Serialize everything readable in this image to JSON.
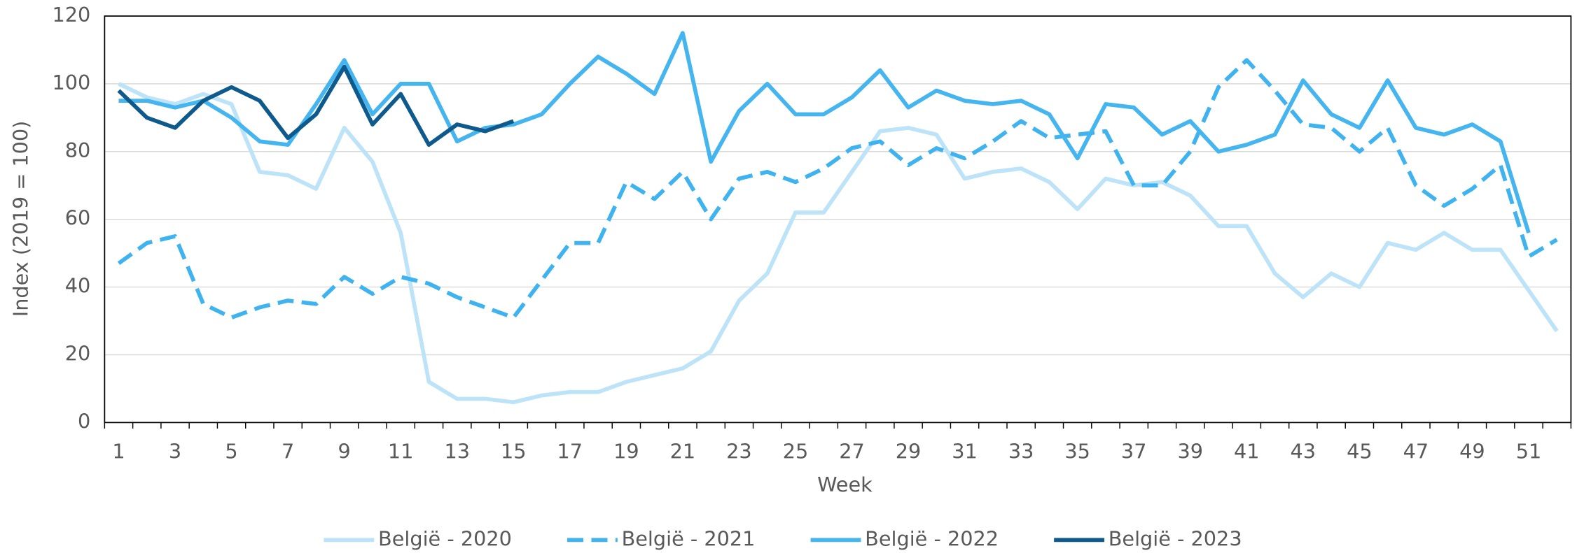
{
  "chart_data": {
    "type": "line",
    "xlabel": "Week",
    "ylabel": "Index (2019 = 100)",
    "categories": [
      "1",
      null,
      "3",
      null,
      "5",
      null,
      "7",
      null,
      "9",
      null,
      "11",
      null,
      "13",
      null,
      "15",
      null,
      "17",
      null,
      "19",
      null,
      "21",
      null,
      "23",
      null,
      "25",
      null,
      "27",
      null,
      "29",
      null,
      "31",
      null,
      "33",
      null,
      "35",
      null,
      "37",
      null,
      "39",
      null,
      "41",
      null,
      "43",
      null,
      "45",
      null,
      "47",
      null,
      "49",
      null,
      "51",
      null
    ],
    "ylim": [
      0,
      120
    ],
    "yticks": [
      0,
      20,
      40,
      60,
      80,
      100,
      120
    ],
    "grid": true,
    "legend": "bottom",
    "series": [
      {
        "name": "België - 2020",
        "color": "#bde3f8",
        "line_style": "solid",
        "values": [
          100,
          96,
          94,
          97,
          94,
          74,
          73,
          69,
          87,
          77,
          56,
          12,
          7,
          7,
          6,
          8,
          9,
          9,
          12,
          14,
          16,
          21,
          36,
          44,
          62,
          62,
          74,
          86,
          87,
          85,
          72,
          74,
          75,
          71,
          63,
          72,
          70,
          71,
          67,
          58,
          58,
          44,
          37,
          44,
          40,
          53,
          51,
          56,
          51,
          51,
          39,
          27
        ]
      },
      {
        "name": "België - 2021",
        "color": "#3fb3ef",
        "line_style": "dashed",
        "values": [
          47,
          53,
          55,
          35,
          31,
          34,
          36,
          35,
          43,
          38,
          43,
          41,
          37,
          34,
          31,
          42,
          53,
          53,
          71,
          66,
          74,
          60,
          72,
          74,
          71,
          75,
          81,
          83,
          76,
          81,
          78,
          83,
          89,
          84,
          85,
          86,
          70,
          70,
          80,
          99,
          107,
          98,
          88,
          87,
          80,
          87,
          70,
          64,
          69,
          76,
          49,
          54
        ]
      },
      {
        "name": "België - 2022",
        "color": "#45b5f0",
        "line_style": "solid",
        "values": [
          95,
          95,
          93,
          95,
          90,
          83,
          82,
          94,
          107,
          91,
          100,
          100,
          83,
          87,
          88,
          91,
          100,
          108,
          103,
          97,
          115,
          77,
          92,
          100,
          91,
          91,
          96,
          104,
          93,
          98,
          95,
          94,
          95,
          91,
          78,
          94,
          93,
          85,
          89,
          80,
          82,
          85,
          101,
          91,
          87,
          101,
          87,
          85,
          88,
          83,
          56,
          null
        ]
      },
      {
        "name": "België - 2023",
        "color": "#0e5a8c",
        "line_style": "solid",
        "values": [
          98,
          90,
          87,
          95,
          99,
          95,
          84,
          91,
          105,
          88,
          97,
          82,
          88,
          86,
          89,
          null,
          null,
          null,
          null,
          null,
          null,
          null,
          null,
          null,
          null,
          null,
          null,
          null,
          null,
          null,
          null,
          null,
          null,
          null,
          null,
          null,
          null,
          null,
          null,
          null,
          null,
          null,
          null,
          null,
          null,
          null,
          null,
          null,
          null,
          null,
          null,
          null
        ]
      }
    ]
  }
}
